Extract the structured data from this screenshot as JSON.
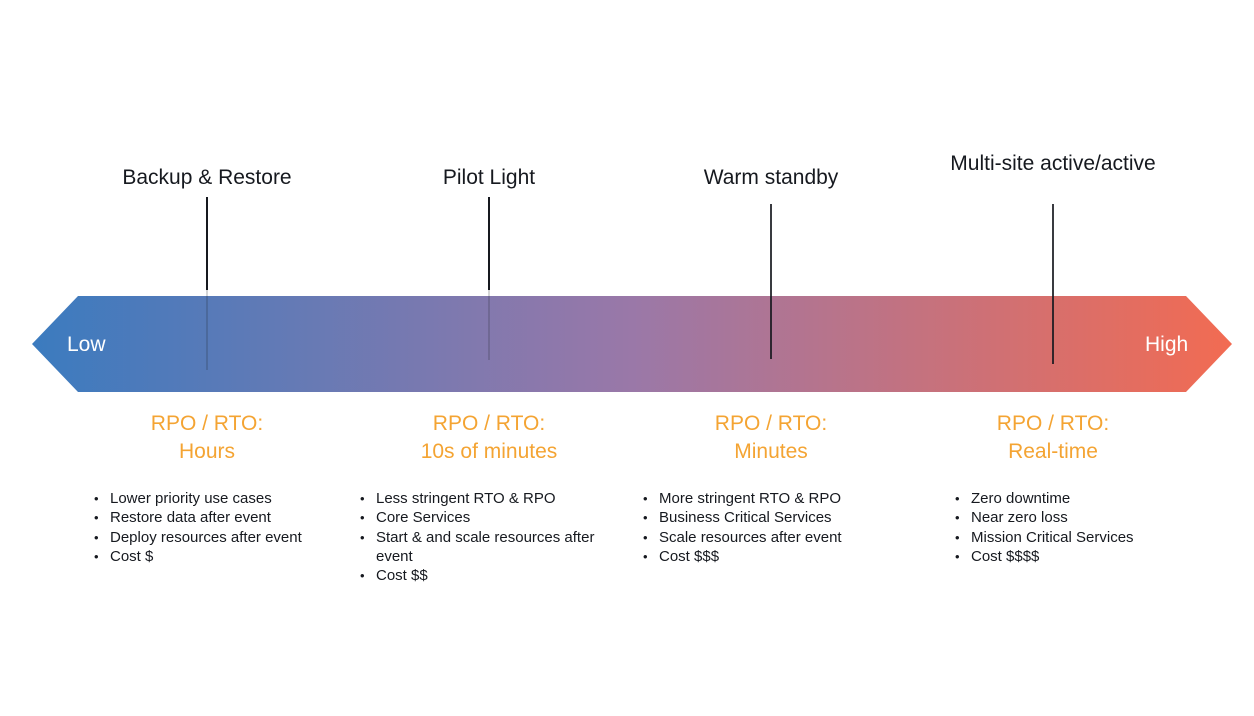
{
  "scale": {
    "low_label": "Low",
    "high_label": "High",
    "gradient_colors": [
      "#3b7bbf",
      "#9a78a8",
      "#f26b52"
    ]
  },
  "strategies": [
    {
      "title": "Backup & Restore",
      "rpo_rto_label": "RPO / RTO:",
      "rpo_rto_value": "Hours",
      "bullets": [
        "Lower priority use cases",
        "Restore data after event",
        "Deploy resources after event",
        "Cost $"
      ]
    },
    {
      "title": "Pilot Light",
      "rpo_rto_label": "RPO / RTO:",
      "rpo_rto_value": "10s of minutes",
      "bullets": [
        "Less stringent RTO & RPO",
        "Core Services",
        "Start & and scale resources after event",
        "Cost $$"
      ]
    },
    {
      "title": "Warm standby",
      "rpo_rto_label": "RPO / RTO:",
      "rpo_rto_value": "Minutes",
      "bullets": [
        "More stringent RTO & RPO",
        "Business Critical Services",
        "Scale resources after event",
        "Cost $$$"
      ]
    },
    {
      "title": "Multi-site active/active",
      "rpo_rto_label": "RPO / RTO:",
      "rpo_rto_value": "Real-time",
      "bullets": [
        "Zero downtime",
        "Near zero loss",
        "Mission Critical Services",
        "Cost $$$$"
      ]
    }
  ],
  "colors": {
    "accent_orange": "#f4a433",
    "text_dark": "#16191f"
  }
}
